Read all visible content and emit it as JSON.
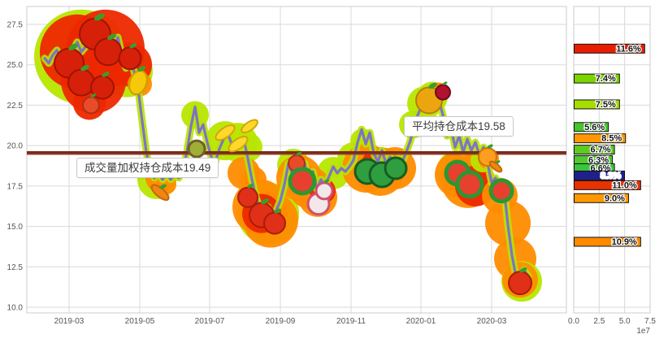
{
  "accent_colors": {
    "price_line": "#7f72c8",
    "price_halo": "#b6e400",
    "bubble_red": "#ed2800",
    "bubble_orange": "#ff8c00",
    "bubble_green": "#b8e600",
    "avg_cost_line": "#7a2b1c",
    "vwap_cost_line": "#93422a",
    "grid": "#d9d9d9",
    "axis_text": "#555555"
  },
  "chart_data": {
    "type": "line",
    "title": "",
    "left_panel": {
      "y_ticks": [
        "27.5",
        "25.0",
        "22.5",
        "20.0",
        "17.5",
        "15.0",
        "12.5",
        "10.0"
      ],
      "y_tick_values": [
        27.5,
        25.0,
        22.5,
        20.0,
        17.5,
        15.0,
        12.5,
        10.0
      ],
      "x_ticks": [
        "2019-03",
        "2019-05",
        "2019-07",
        "2019-09",
        "2019-11",
        "2020-01",
        "2020-03"
      ],
      "ylim": [
        9.65,
        28.6
      ],
      "grid": true,
      "avg_cost": {
        "label": "平均持仓成本19.58",
        "value": 19.58
      },
      "vwap_cost": {
        "label": "成交量加权持仓成本19.49",
        "value": 19.49
      },
      "price_series": [
        25.4,
        25.1,
        25.6,
        25.9,
        25.3,
        25.6,
        25.2,
        25.9,
        26.4,
        25.8,
        26.1,
        26.6,
        26.9,
        26.5,
        27.3,
        26.3,
        26.7,
        26.1,
        26.7,
        25.6,
        24.8,
        25.3,
        24.6,
        23.5,
        21.5,
        19.6,
        18.4,
        18.0,
        18.4,
        17.9,
        18.3,
        17.9,
        18.2,
        18.0,
        18.5,
        19.6,
        21.2,
        22.4,
        20.8,
        21.3,
        20.2,
        19.3,
        19.0,
        19.8,
        20.4,
        20.8,
        20.1,
        19.7,
        20.2,
        20.4,
        19.2,
        17.9,
        16.8,
        16.1,
        15.8,
        16.2,
        15.7,
        16.0,
        16.6,
        17.6,
        18.9,
        18.2,
        19.4,
        18.1,
        18.9,
        17.6,
        18.4,
        17.3,
        17.9,
        17.5,
        18.1,
        18.7,
        18.3,
        18.6,
        18.4,
        18.7,
        19.1,
        20.2,
        21.0,
        20.1,
        20.8,
        19.5,
        19.0,
        19.7,
        18.9,
        19.3,
        18.9,
        19.2,
        19.0,
        19.6,
        20.3,
        21.4,
        22.0,
        22.6,
        23.2,
        22.5,
        23.4,
        22.8,
        21.9,
        20.6,
        21.1,
        19.9,
        20.6,
        19.6,
        20.4,
        19.7,
        20.2,
        19.4,
        19.9,
        18.9,
        17.7,
        18.0,
        16.6,
        17.4,
        15.1,
        13.2,
        11.9,
        11.2,
        12.3,
        11.9
      ],
      "bubbles": [
        {
          "x": 100,
          "p": 25.5,
          "r": 58,
          "c": "g"
        },
        {
          "x": 156,
          "p": 24.6,
          "r": 32,
          "c": "g"
        },
        {
          "x": 95,
          "p": 25.8,
          "r": 46,
          "c": "r"
        },
        {
          "x": 130,
          "p": 26.0,
          "r": 48,
          "c": "r"
        },
        {
          "x": 115,
          "p": 24.0,
          "r": 40,
          "c": "r"
        },
        {
          "x": 160,
          "p": 25.0,
          "r": 27,
          "c": "r"
        },
        {
          "x": 110,
          "p": 22.6,
          "r": 20,
          "c": "r"
        },
        {
          "x": 172,
          "p": 23.8,
          "r": 15,
          "c": "o"
        },
        {
          "x": 193,
          "p": 17.9,
          "r": 24,
          "c": "g"
        },
        {
          "x": 197,
          "p": 18.0,
          "r": 18,
          "c": "o"
        },
        {
          "x": 205,
          "p": 17.6,
          "r": 12,
          "c": "o"
        },
        {
          "x": 240,
          "p": 21.9,
          "r": 17,
          "c": "g"
        },
        {
          "x": 277,
          "p": 20.3,
          "r": 24,
          "c": "g"
        },
        {
          "x": 293,
          "p": 20.2,
          "r": 24,
          "c": "g"
        },
        {
          "x": 305,
          "p": 19.9,
          "r": 18,
          "c": "g"
        },
        {
          "x": 300,
          "p": 18.3,
          "r": 20,
          "c": "o"
        },
        {
          "x": 312,
          "p": 17.9,
          "r": 16,
          "c": "o"
        },
        {
          "x": 330,
          "p": 15.8,
          "r": 38,
          "c": "g"
        },
        {
          "x": 320,
          "p": 16.2,
          "r": 34,
          "c": "o"
        },
        {
          "x": 333,
          "p": 15.4,
          "r": 34,
          "c": "o"
        },
        {
          "x": 322,
          "p": 15.8,
          "r": 24,
          "c": "r"
        },
        {
          "x": 361,
          "p": 18.8,
          "r": 20,
          "c": "g"
        },
        {
          "x": 410,
          "p": 18.3,
          "r": 20,
          "c": "g"
        },
        {
          "x": 368,
          "p": 18.0,
          "r": 28,
          "c": "o"
        },
        {
          "x": 381,
          "p": 17.4,
          "r": 26,
          "c": "o"
        },
        {
          "x": 391,
          "p": 16.8,
          "r": 24,
          "c": "o"
        },
        {
          "x": 397,
          "p": 17.2,
          "r": 16,
          "c": "r"
        },
        {
          "x": 435,
          "p": 19.2,
          "r": 20,
          "c": "g"
        },
        {
          "x": 446,
          "p": 20.3,
          "r": 15,
          "c": "g"
        },
        {
          "x": 451,
          "p": 18.6,
          "r": 30,
          "c": "o"
        },
        {
          "x": 468,
          "p": 18.4,
          "r": 30,
          "c": "o"
        },
        {
          "x": 486,
          "p": 18.6,
          "r": 26,
          "c": "o"
        },
        {
          "x": 461,
          "p": 18.9,
          "r": 16,
          "c": "r"
        },
        {
          "x": 508,
          "p": 21.3,
          "r": 17,
          "c": "g"
        },
        {
          "x": 522,
          "p": 22.6,
          "r": 21,
          "c": "g"
        },
        {
          "x": 532,
          "p": 23.0,
          "r": 19,
          "c": "g"
        },
        {
          "x": 540,
          "p": 23.3,
          "r": 12,
          "c": "o"
        },
        {
          "x": 563,
          "p": 18.4,
          "r": 26,
          "c": "g"
        },
        {
          "x": 563,
          "p": 18.2,
          "r": 28,
          "c": "o"
        },
        {
          "x": 576,
          "p": 17.8,
          "r": 33,
          "c": "o"
        },
        {
          "x": 585,
          "p": 17.5,
          "r": 25,
          "c": "r"
        },
        {
          "x": 594,
          "p": 19.1,
          "r": 15,
          "c": "g"
        },
        {
          "x": 601,
          "p": 19.2,
          "r": 13,
          "c": "o"
        },
        {
          "x": 615,
          "p": 16.9,
          "r": 22,
          "c": "o"
        },
        {
          "x": 625,
          "p": 15.2,
          "r": 28,
          "c": "o"
        },
        {
          "x": 634,
          "p": 13.0,
          "r": 26,
          "c": "o"
        },
        {
          "x": 642,
          "p": 11.6,
          "r": 25,
          "c": "g"
        },
        {
          "x": 640,
          "p": 11.7,
          "r": 22,
          "c": "o"
        }
      ],
      "fruits": [
        {
          "name": "apple",
          "x": 85,
          "p": 25.1,
          "s": 36
        },
        {
          "name": "apple",
          "x": 117,
          "p": 26.9,
          "s": 38
        },
        {
          "name": "apple",
          "x": 133,
          "p": 25.8,
          "s": 33
        },
        {
          "name": "apple",
          "x": 100,
          "p": 23.9,
          "s": 32
        },
        {
          "name": "apple",
          "x": 126,
          "p": 23.6,
          "s": 28
        },
        {
          "name": "apple",
          "x": 160,
          "p": 25.4,
          "s": 27
        },
        {
          "name": "tomato",
          "x": 112,
          "p": 22.5,
          "s": 20
        },
        {
          "name": "corn",
          "x": 170,
          "p": 23.9,
          "s": 30
        },
        {
          "name": "carrot",
          "x": 197,
          "p": 17.1,
          "s": 26
        },
        {
          "name": "kiwi",
          "x": 242,
          "p": 19.8,
          "s": 20
        },
        {
          "name": "banana",
          "x": 277,
          "p": 20.8,
          "s": 27
        },
        {
          "name": "banana",
          "x": 293,
          "p": 20.1,
          "s": 27
        },
        {
          "name": "banana",
          "x": 307,
          "p": 21.2,
          "s": 23
        },
        {
          "name": "strawberry",
          "x": 305,
          "p": 16.8,
          "s": 24
        },
        {
          "name": "strawberry",
          "x": 322,
          "p": 15.7,
          "s": 30
        },
        {
          "name": "strawberry",
          "x": 338,
          "p": 15.2,
          "s": 26
        },
        {
          "name": "tomato",
          "x": 365,
          "p": 18.9,
          "s": 20
        },
        {
          "name": "watermelon-slice",
          "x": 372,
          "p": 17.8,
          "s": 30
        },
        {
          "name": "radish",
          "x": 392,
          "p": 16.4,
          "s": 26
        },
        {
          "name": "radish",
          "x": 399,
          "p": 17.2,
          "s": 20
        },
        {
          "name": "watermelon",
          "x": 452,
          "p": 18.4,
          "s": 30
        },
        {
          "name": "watermelon",
          "x": 470,
          "p": 18.2,
          "s": 30
        },
        {
          "name": "watermelon",
          "x": 487,
          "p": 18.6,
          "s": 26
        },
        {
          "name": "pineapple",
          "x": 528,
          "p": 22.8,
          "s": 32
        },
        {
          "name": "cherry",
          "x": 545,
          "p": 23.3,
          "s": 18
        },
        {
          "name": "watermelon-slice",
          "x": 563,
          "p": 18.3,
          "s": 28
        },
        {
          "name": "watermelon-slice",
          "x": 578,
          "p": 17.6,
          "s": 30
        },
        {
          "name": "tangerine",
          "x": 600,
          "p": 19.3,
          "s": 22
        },
        {
          "name": "carrot",
          "x": 610,
          "p": 18.7,
          "s": 18
        },
        {
          "name": "watermelon-slice",
          "x": 617,
          "p": 17.2,
          "s": 26
        },
        {
          "name": "strawberry",
          "x": 640,
          "p": 11.5,
          "s": 28
        }
      ]
    },
    "right_panel": {
      "type": "bar",
      "x_ticks": [
        "0.0",
        "2.5",
        "5.0",
        "7.5"
      ],
      "x_tick_values": [
        0,
        2.5,
        5.0,
        7.5
      ],
      "exponent_label": "1e7",
      "xlim": [
        0,
        7.5
      ],
      "bars": [
        {
          "price": 26.0,
          "label": "11.6%",
          "value": 7.0,
          "color": "#e81e00",
          "text": "#111111"
        },
        {
          "price": 24.15,
          "label": "7.4%",
          "value": 4.5,
          "color": "#7bd400",
          "text": "#111111"
        },
        {
          "price": 22.55,
          "label": "7.5%",
          "value": 4.5,
          "color": "#a6de00",
          "text": "#111111"
        },
        {
          "price": 21.15,
          "label": "5.6%",
          "value": 3.4,
          "color": "#44c52c",
          "text": "#111111"
        },
        {
          "price": 20.45,
          "label": "8.5%",
          "value": 5.1,
          "color": "#ff9800",
          "text": "#111111"
        },
        {
          "price": 19.75,
          "label": "6.7%",
          "value": 4.0,
          "color": "#5ecc1e",
          "text": "#111111"
        },
        {
          "price": 19.1,
          "label": "6.3%",
          "value": 3.8,
          "color": "#52c832",
          "text": "#111111"
        },
        {
          "price": 18.6,
          "label": "6.6%",
          "value": 4.0,
          "color": "#3cc43c",
          "text": "#111111"
        },
        {
          "price": 18.15,
          "label": "8.3%",
          "value": 5.0,
          "color": "#20208c",
          "text": "#ffffff"
        },
        {
          "price": 17.55,
          "label": "11.0%",
          "value": 6.6,
          "color": "#e83200",
          "text": "#111111"
        },
        {
          "price": 16.75,
          "label": "9.0%",
          "value": 5.4,
          "color": "#ff9800",
          "text": "#111111"
        },
        {
          "price": 14.05,
          "label": "10.9%",
          "value": 6.6,
          "color": "#ff8a00",
          "text": "#111111"
        }
      ]
    }
  }
}
